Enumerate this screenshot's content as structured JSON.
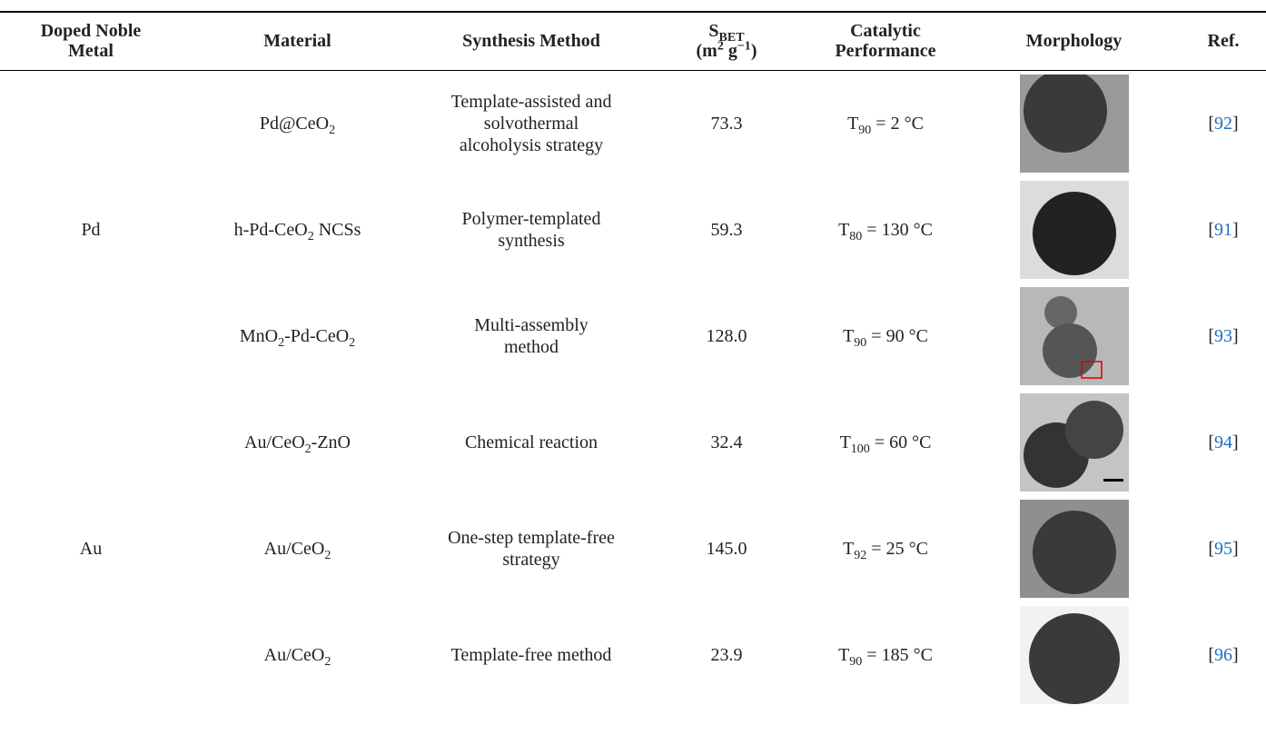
{
  "table": {
    "header": [
      [
        [
          "Doped Noble"
        ],
        [
          "Metal"
        ]
      ],
      [
        [
          "Material"
        ]
      ],
      [
        [
          "Synthesis Method"
        ]
      ],
      [
        [
          "S",
          {
            "sub": "BET"
          }
        ],
        [
          "(m",
          {
            "sup": "2"
          },
          " g",
          {
            "sup": "−1"
          },
          ")"
        ]
      ],
      [
        [
          "Catalytic"
        ],
        [
          "Performance"
        ]
      ],
      [
        [
          "Morphology"
        ]
      ],
      [
        [
          "Ref."
        ]
      ]
    ],
    "groups": [
      {
        "metal": "Pd",
        "rows": [
          {
            "material": [
              "Pd@CeO",
              {
                "sub": "2"
              }
            ],
            "method": "Template-assisted and solvothermal alcoholysis strategy",
            "sbet": "73.3",
            "performance": [
              "T",
              {
                "sub": "90"
              },
              " = 2 °C"
            ],
            "ref": [
              "[",
              {
                "link": "92"
              },
              "]"
            ]
          },
          {
            "material": [
              "h-Pd-CeO",
              {
                "sub": "2"
              },
              " NCSs"
            ],
            "method": "Polymer-templated synthesis",
            "sbet": "59.3",
            "performance": [
              "T",
              {
                "sub": "80"
              },
              " = 130 °C"
            ],
            "ref": [
              "[",
              {
                "link": "91"
              },
              "]"
            ]
          },
          {
            "material": [
              "MnO",
              {
                "sub": "2"
              },
              "-Pd-CeO",
              {
                "sub": "2"
              }
            ],
            "method": "Multi-assembly method",
            "sbet": "128.0",
            "performance": [
              "T",
              {
                "sub": "90"
              },
              " = 90 °C"
            ],
            "ref": [
              "[",
              {
                "link": "93"
              },
              "]"
            ]
          }
        ]
      },
      {
        "metal": "Au",
        "rows": [
          {
            "material": [
              "Au/CeO",
              {
                "sub": "2"
              },
              "-ZnO"
            ],
            "method": "Chemical reaction",
            "sbet": "32.4",
            "performance": [
              "T",
              {
                "sub": "100"
              },
              " = 60 °C"
            ],
            "ref": [
              "[",
              {
                "link": "94"
              },
              "]"
            ]
          },
          {
            "material": [
              "Au/CeO",
              {
                "sub": "2"
              }
            ],
            "method": "One-step template-free strategy",
            "sbet": "145.0",
            "performance": [
              "T",
              {
                "sub": "92"
              },
              " = 25 °C"
            ],
            "ref": [
              "[",
              {
                "link": "95"
              },
              "]"
            ]
          },
          {
            "material": [
              "Au/CeO",
              {
                "sub": "2"
              }
            ],
            "method": "Template-free method",
            "sbet": "23.9",
            "performance": [
              "T",
              {
                "sub": "90"
              },
              " = 185 °C"
            ],
            "ref": [
              "[",
              {
                "link": "96"
              },
              "]"
            ]
          }
        ]
      }
    ]
  }
}
